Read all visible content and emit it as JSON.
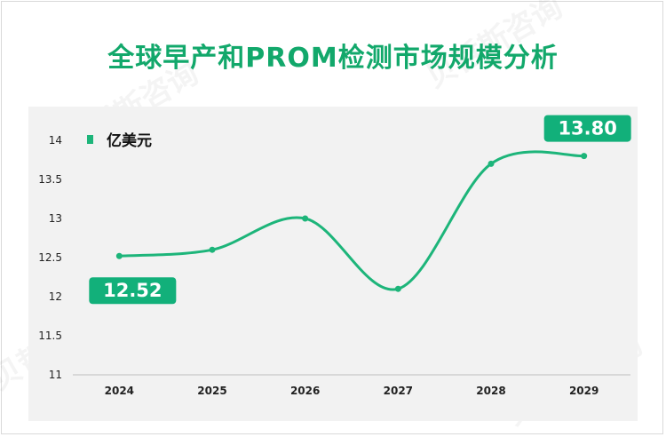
{
  "chart_data": {
    "type": "line",
    "title": "全球早产和PROM检测市场规模分析",
    "xlabel": "",
    "ylabel": "",
    "categories": [
      "2024",
      "2025",
      "2026",
      "2027",
      "2028",
      "2029"
    ],
    "series": [
      {
        "name": "亿美元",
        "values": [
          12.52,
          12.6,
          13.0,
          12.1,
          13.7,
          13.8
        ]
      }
    ],
    "ylim": [
      11,
      14
    ],
    "yticks": [
      "11",
      "11.5",
      "12",
      "12.5",
      "13",
      "13.5",
      "14"
    ],
    "ytick_values": [
      11,
      11.5,
      12,
      12.5,
      13,
      13.5,
      14
    ],
    "grid": false,
    "legend": "top-left",
    "annotations": [
      {
        "category": "2024",
        "text": "12.52"
      },
      {
        "category": "2029",
        "text": "13.80"
      }
    ],
    "colors": {
      "line": "#1db57a",
      "title": "#12a86b",
      "callout": "#12b07a",
      "plot_bg": "#f2f2f2"
    }
  },
  "watermark": {
    "text": "贝哲斯咨询"
  }
}
